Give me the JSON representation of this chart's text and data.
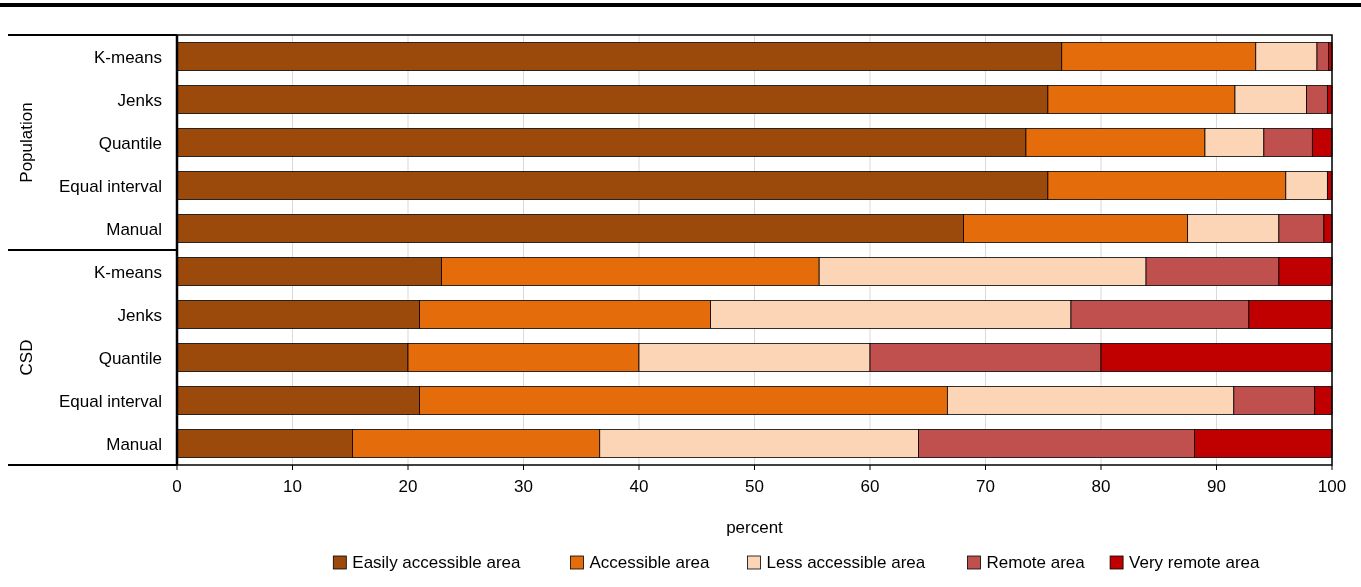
{
  "chart_data": {
    "type": "bar",
    "orientation": "horizontal",
    "stacked": true,
    "categories": [
      "K-means",
      "Jenks",
      "Quantile",
      "Equal interval",
      "Manual",
      "K-means",
      "Jenks",
      "Quantile",
      "Equal interval",
      "Manual"
    ],
    "series": [
      {
        "name": "Easily accessible area",
        "color": "#9c4a0c",
        "values": [
          76.6,
          75.4,
          73.5,
          75.4,
          68.1,
          22.9,
          21.0,
          20,
          21.0,
          15.2
        ]
      },
      {
        "name": "Accessible area",
        "color": "#e46c0a",
        "values": [
          16.8,
          16.2,
          15.5,
          20.6,
          19.4,
          32.7,
          25.2,
          20,
          45.7,
          21.4
        ]
      },
      {
        "name": "Less accessible area",
        "color": "#fbd5b5",
        "values": [
          5.3,
          6.2,
          5.1,
          3.6,
          7.9,
          28.3,
          31.2,
          20,
          24.8,
          27.6
        ]
      },
      {
        "name": "Remote area",
        "color": "#c0504d",
        "values": [
          1.0,
          1.8,
          4.2,
          null,
          3.9,
          11.5,
          15.4,
          20,
          7.0,
          23.9
        ]
      },
      {
        "name": "Very remote area",
        "color": "#c00000",
        "values": [
          0.3,
          0.4,
          1.7,
          0.4,
          0.7,
          4.6,
          7.2,
          20,
          1.5,
          11.9
        ]
      }
    ],
    "xlim": [
      0,
      100
    ],
    "xticks": [
      0,
      10,
      20,
      30,
      40,
      50,
      60,
      70,
      80,
      90,
      100
    ],
    "xlabel": "percent",
    "grid": "x",
    "legend": "bottom",
    "annotations": [
      "Population",
      "CSD"
    ]
  }
}
